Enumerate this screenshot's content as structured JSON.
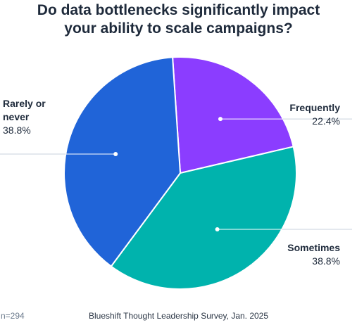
{
  "chart_data": {
    "type": "pie",
    "title_lines": [
      "Do data bottlenecks significantly impact",
      "your ability to scale campaigns?"
    ],
    "slices": [
      {
        "label": "Frequently",
        "value": 22.4,
        "display": "22.4%",
        "color": "#8b3dff"
      },
      {
        "label": "Sometimes",
        "value": 38.8,
        "display": "38.8%",
        "color": "#00b3ad"
      },
      {
        "label": "Rarely or never",
        "label_lines": [
          "Rarely or",
          "never"
        ],
        "value": 38.8,
        "display": "38.8%",
        "color": "#2064d8"
      }
    ]
  },
  "footer": {
    "sample": "n=294",
    "source": "Blueshift Thought Leadership Survey, Jan. 2025"
  }
}
